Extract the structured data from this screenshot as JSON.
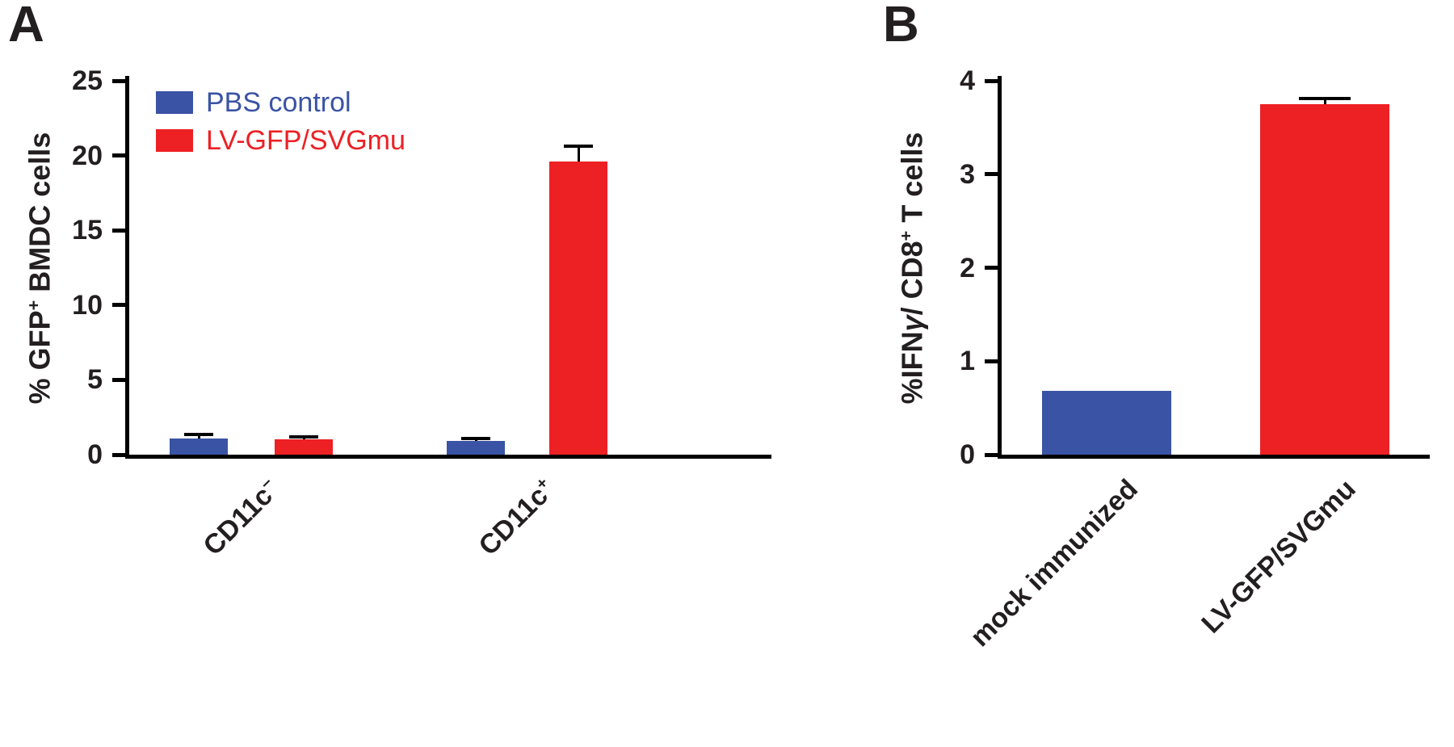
{
  "figure": {
    "background": "#ffffff",
    "panels": [
      {
        "letter": "A",
        "ylabel": [
          {
            "t": "% GFP"
          },
          {
            "t": "+",
            "sup": true
          },
          {
            "t": " BMDC cells"
          }
        ],
        "legend": [
          {
            "label": "PBS control",
            "color": "#3a53a4"
          },
          {
            "label": "LV-GFP/SVGmu",
            "color": "#ed2024"
          }
        ],
        "categories": [
          [
            {
              "t": "CD11c"
            },
            {
              "t": "−",
              "sup": true
            }
          ],
          [
            {
              "t": "CD11c"
            },
            {
              "t": "+",
              "sup": true
            }
          ]
        ]
      },
      {
        "letter": "B",
        "ylabel": [
          {
            "t": "%IFN"
          },
          {
            "t": "γ",
            "italic": true
          },
          {
            "t": "/ CD8"
          },
          {
            "t": "+",
            "sup": true
          },
          {
            "t": " T cells"
          }
        ],
        "categories": [
          [
            {
              "t": "mock immunized"
            }
          ],
          [
            {
              "t": "LV-GFP/SVGmu"
            }
          ]
        ]
      }
    ]
  },
  "chart_data": [
    {
      "type": "bar",
      "panel": "A",
      "title": "",
      "categories": [
        "CD11c-",
        "CD11c+"
      ],
      "series": [
        {
          "name": "PBS control",
          "color": "#3a53a4",
          "values": [
            1.1,
            0.9
          ],
          "errors": [
            0.25,
            0.2
          ]
        },
        {
          "name": "LV-GFP/SVGmu",
          "color": "#ed2024",
          "values": [
            1.0,
            19.6
          ],
          "errors": [
            0.2,
            1.0
          ]
        }
      ],
      "xlabel": "",
      "ylabel": "% GFP+ BMDC cells",
      "ylim": [
        0,
        25
      ],
      "yticks": [
        0,
        5,
        10,
        15,
        20,
        25
      ],
      "grid": false,
      "legend_position": "top-left",
      "error_bars": "upper"
    },
    {
      "type": "bar",
      "panel": "B",
      "title": "",
      "categories": [
        "mock immunized",
        "LV-GFP/SVGmu"
      ],
      "values": [
        0.68,
        3.75
      ],
      "errors": [
        0,
        0.06
      ],
      "colors": [
        "#3a53a4",
        "#ed2024"
      ],
      "xlabel": "",
      "ylabel": "%IFNγ/ CD8+ T cells",
      "ylim": [
        0,
        4
      ],
      "yticks": [
        0,
        1,
        2,
        3,
        4
      ],
      "grid": false,
      "legend_position": "none",
      "error_bars": "upper"
    }
  ]
}
